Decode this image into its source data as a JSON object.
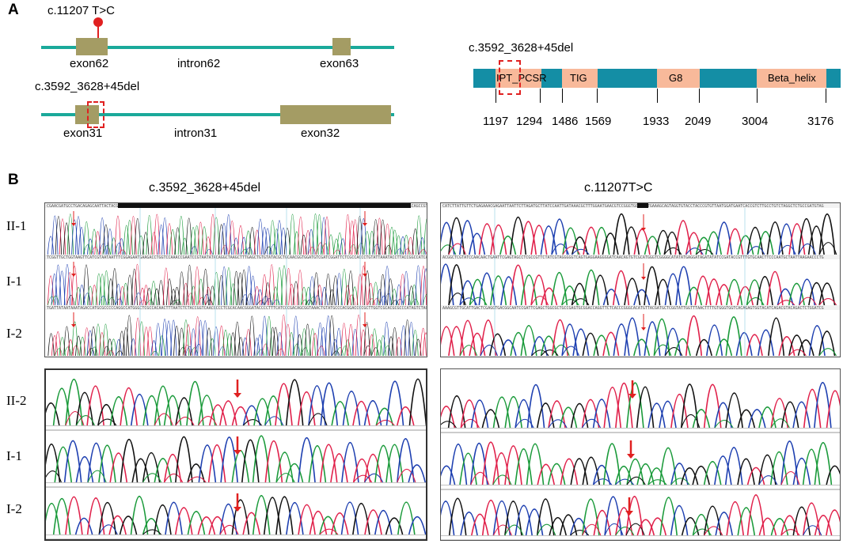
{
  "panel_a": {
    "letter": "A",
    "gene_top": {
      "variant": "c.11207 T>C",
      "exon_left": "exon62",
      "intron": "intron62",
      "exon_right": "exon63"
    },
    "gene_bottom": {
      "variant": "c.3592_3628+45del",
      "exon_left": "exon31",
      "intron": "intron31",
      "exon_right": "exon32"
    },
    "protein": {
      "variant": "c.3592_3628+45del",
      "domains": [
        "IPT_PCSR",
        "TIG",
        "G8",
        "Beta_helix"
      ],
      "positions": [
        "1197",
        "1294",
        "1486",
        "1569",
        "1933",
        "2049",
        "3004",
        "3176"
      ]
    }
  },
  "panel_b": {
    "letter": "B",
    "left_title": "c.3592_3628+45del",
    "right_title": "c.11207T>C",
    "top_samples": [
      "II-1",
      "I-1",
      "I-2"
    ],
    "bottom_samples": [
      "II-2",
      "I-1",
      "I-2"
    ]
  },
  "colors": {
    "track": "#1aa99a",
    "exon": "#a49c64",
    "protein_bar": "#148ea5",
    "domain": "#f8b99a",
    "marker": "#e02020",
    "trace_green": "#1a9a3a",
    "trace_blue": "#1d3fb0",
    "trace_red": "#e0204a",
    "trace_black": "#111111"
  }
}
